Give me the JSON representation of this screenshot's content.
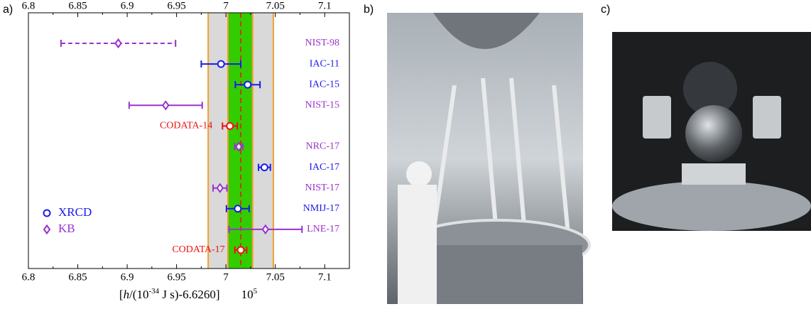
{
  "panel_labels": [
    "a)",
    "b)",
    "c)"
  ],
  "chart_data": {
    "type": "dot-error",
    "xlim": [
      6.8,
      7.125
    ],
    "xticks": [
      6.8,
      6.85,
      6.9,
      6.95,
      7,
      7.05,
      7.1
    ],
    "x_label_parts": [
      "[",
      "h",
      "/(10",
      "-34",
      " J s)-6.6260]",
      "10",
      "5"
    ],
    "categories": [
      "NIST-98",
      "IAC-11",
      "IAC-15",
      "NIST-15",
      "CODATA-14",
      "NRC-17",
      "IAC-17",
      "NIST-17",
      "NMIJ-17",
      "LNE-17",
      "CODATA-17"
    ],
    "values": [
      6.891,
      6.995,
      7.022,
      6.939,
      7.004,
      7.013,
      7.039,
      6.994,
      7.012,
      7.04,
      7.015
    ],
    "errors": [
      0.058,
      0.02,
      0.0125,
      0.037,
      0.0075,
      0.004,
      0.006,
      0.007,
      0.0115,
      0.037,
      0.006
    ],
    "colors": [
      "#9933cc",
      "#1a1aee",
      "#1a1aee",
      "#9933cc",
      "#ee1111",
      "#9933cc",
      "#1a1aee",
      "#9933cc",
      "#1a1aee",
      "#9933cc",
      "#ee1111"
    ],
    "markers": [
      "diamond",
      "circle",
      "circle",
      "diamond",
      "circle",
      "diamond",
      "circle",
      "diamond",
      "circle",
      "diamond",
      "circle"
    ],
    "line_styles": [
      "dashed",
      "solid",
      "solid",
      "solid",
      "solid",
      "solid",
      "solid",
      "solid",
      "solid",
      "solid",
      "solid"
    ],
    "bands": [
      {
        "lo": 6.982,
        "hi": 7.048,
        "color": "#d9d9d9",
        "edge": "#f0a030"
      },
      {
        "lo": 7.002,
        "hi": 7.027,
        "color": "#33cc00",
        "edge": "#f0a030"
      }
    ],
    "reference_line": {
      "value": 7.015,
      "color": "#ee1111"
    },
    "legend": [
      {
        "name": "XRCD",
        "marker": "circle",
        "color": "#1a1aee"
      },
      {
        "name": "KB",
        "marker": "diamond",
        "color": "#9933cc"
      }
    ]
  }
}
